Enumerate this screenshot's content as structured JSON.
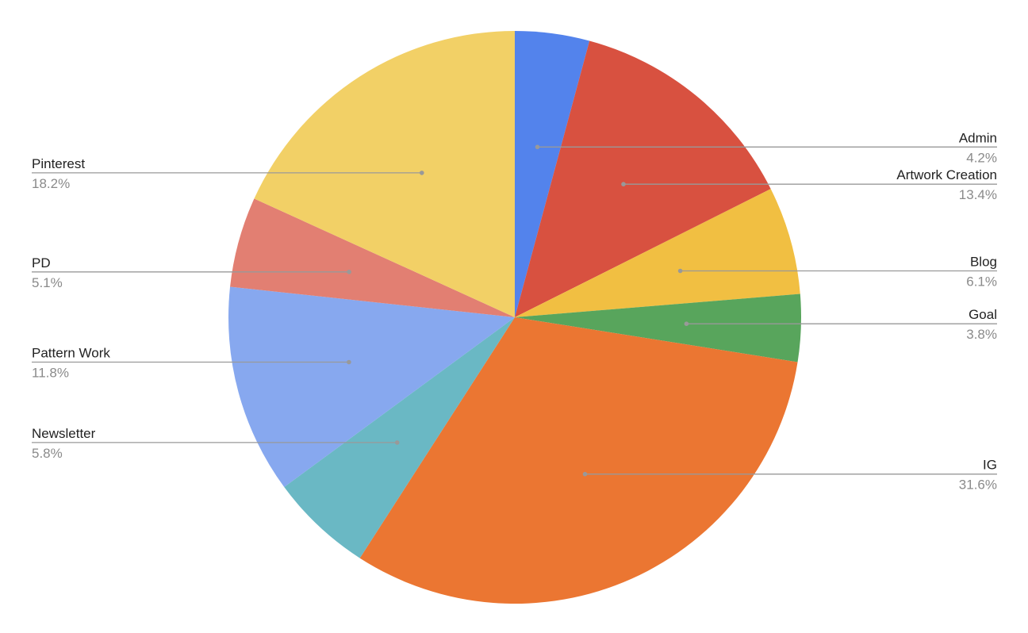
{
  "chart_data": {
    "type": "pie",
    "start_angle_deg": 0,
    "direction": "clockwise",
    "slices": [
      {
        "name": "Admin",
        "value": 4.2,
        "label": "4.2%",
        "color": "#5383EC",
        "side": "right"
      },
      {
        "name": "Artwork Creation",
        "value": 13.4,
        "label": "13.4%",
        "color": "#D85140",
        "side": "right"
      },
      {
        "name": "Blog",
        "value": 6.1,
        "label": "6.1%",
        "color": "#F1BF42",
        "side": "right"
      },
      {
        "name": "Goal",
        "value": 3.8,
        "label": "3.8%",
        "color": "#58A55C",
        "side": "right"
      },
      {
        "name": "IG",
        "value": 31.6,
        "label": "31.6%",
        "color": "#EB7632",
        "side": "right"
      },
      {
        "name": "Newsletter",
        "value": 5.8,
        "label": "5.8%",
        "color": "#6AB8C4",
        "side": "left"
      },
      {
        "name": "Pattern Work",
        "value": 11.8,
        "label": "11.8%",
        "color": "#87A8EF",
        "side": "left"
      },
      {
        "name": "PD",
        "value": 5.1,
        "label": "5.1%",
        "color": "#E27F72",
        "side": "left"
      },
      {
        "name": "Pinterest",
        "value": 18.2,
        "label": "18.2%",
        "color": "#F2D066",
        "side": "left"
      }
    ],
    "legend": "leader-line labels",
    "leader_line_color": "#999999"
  }
}
